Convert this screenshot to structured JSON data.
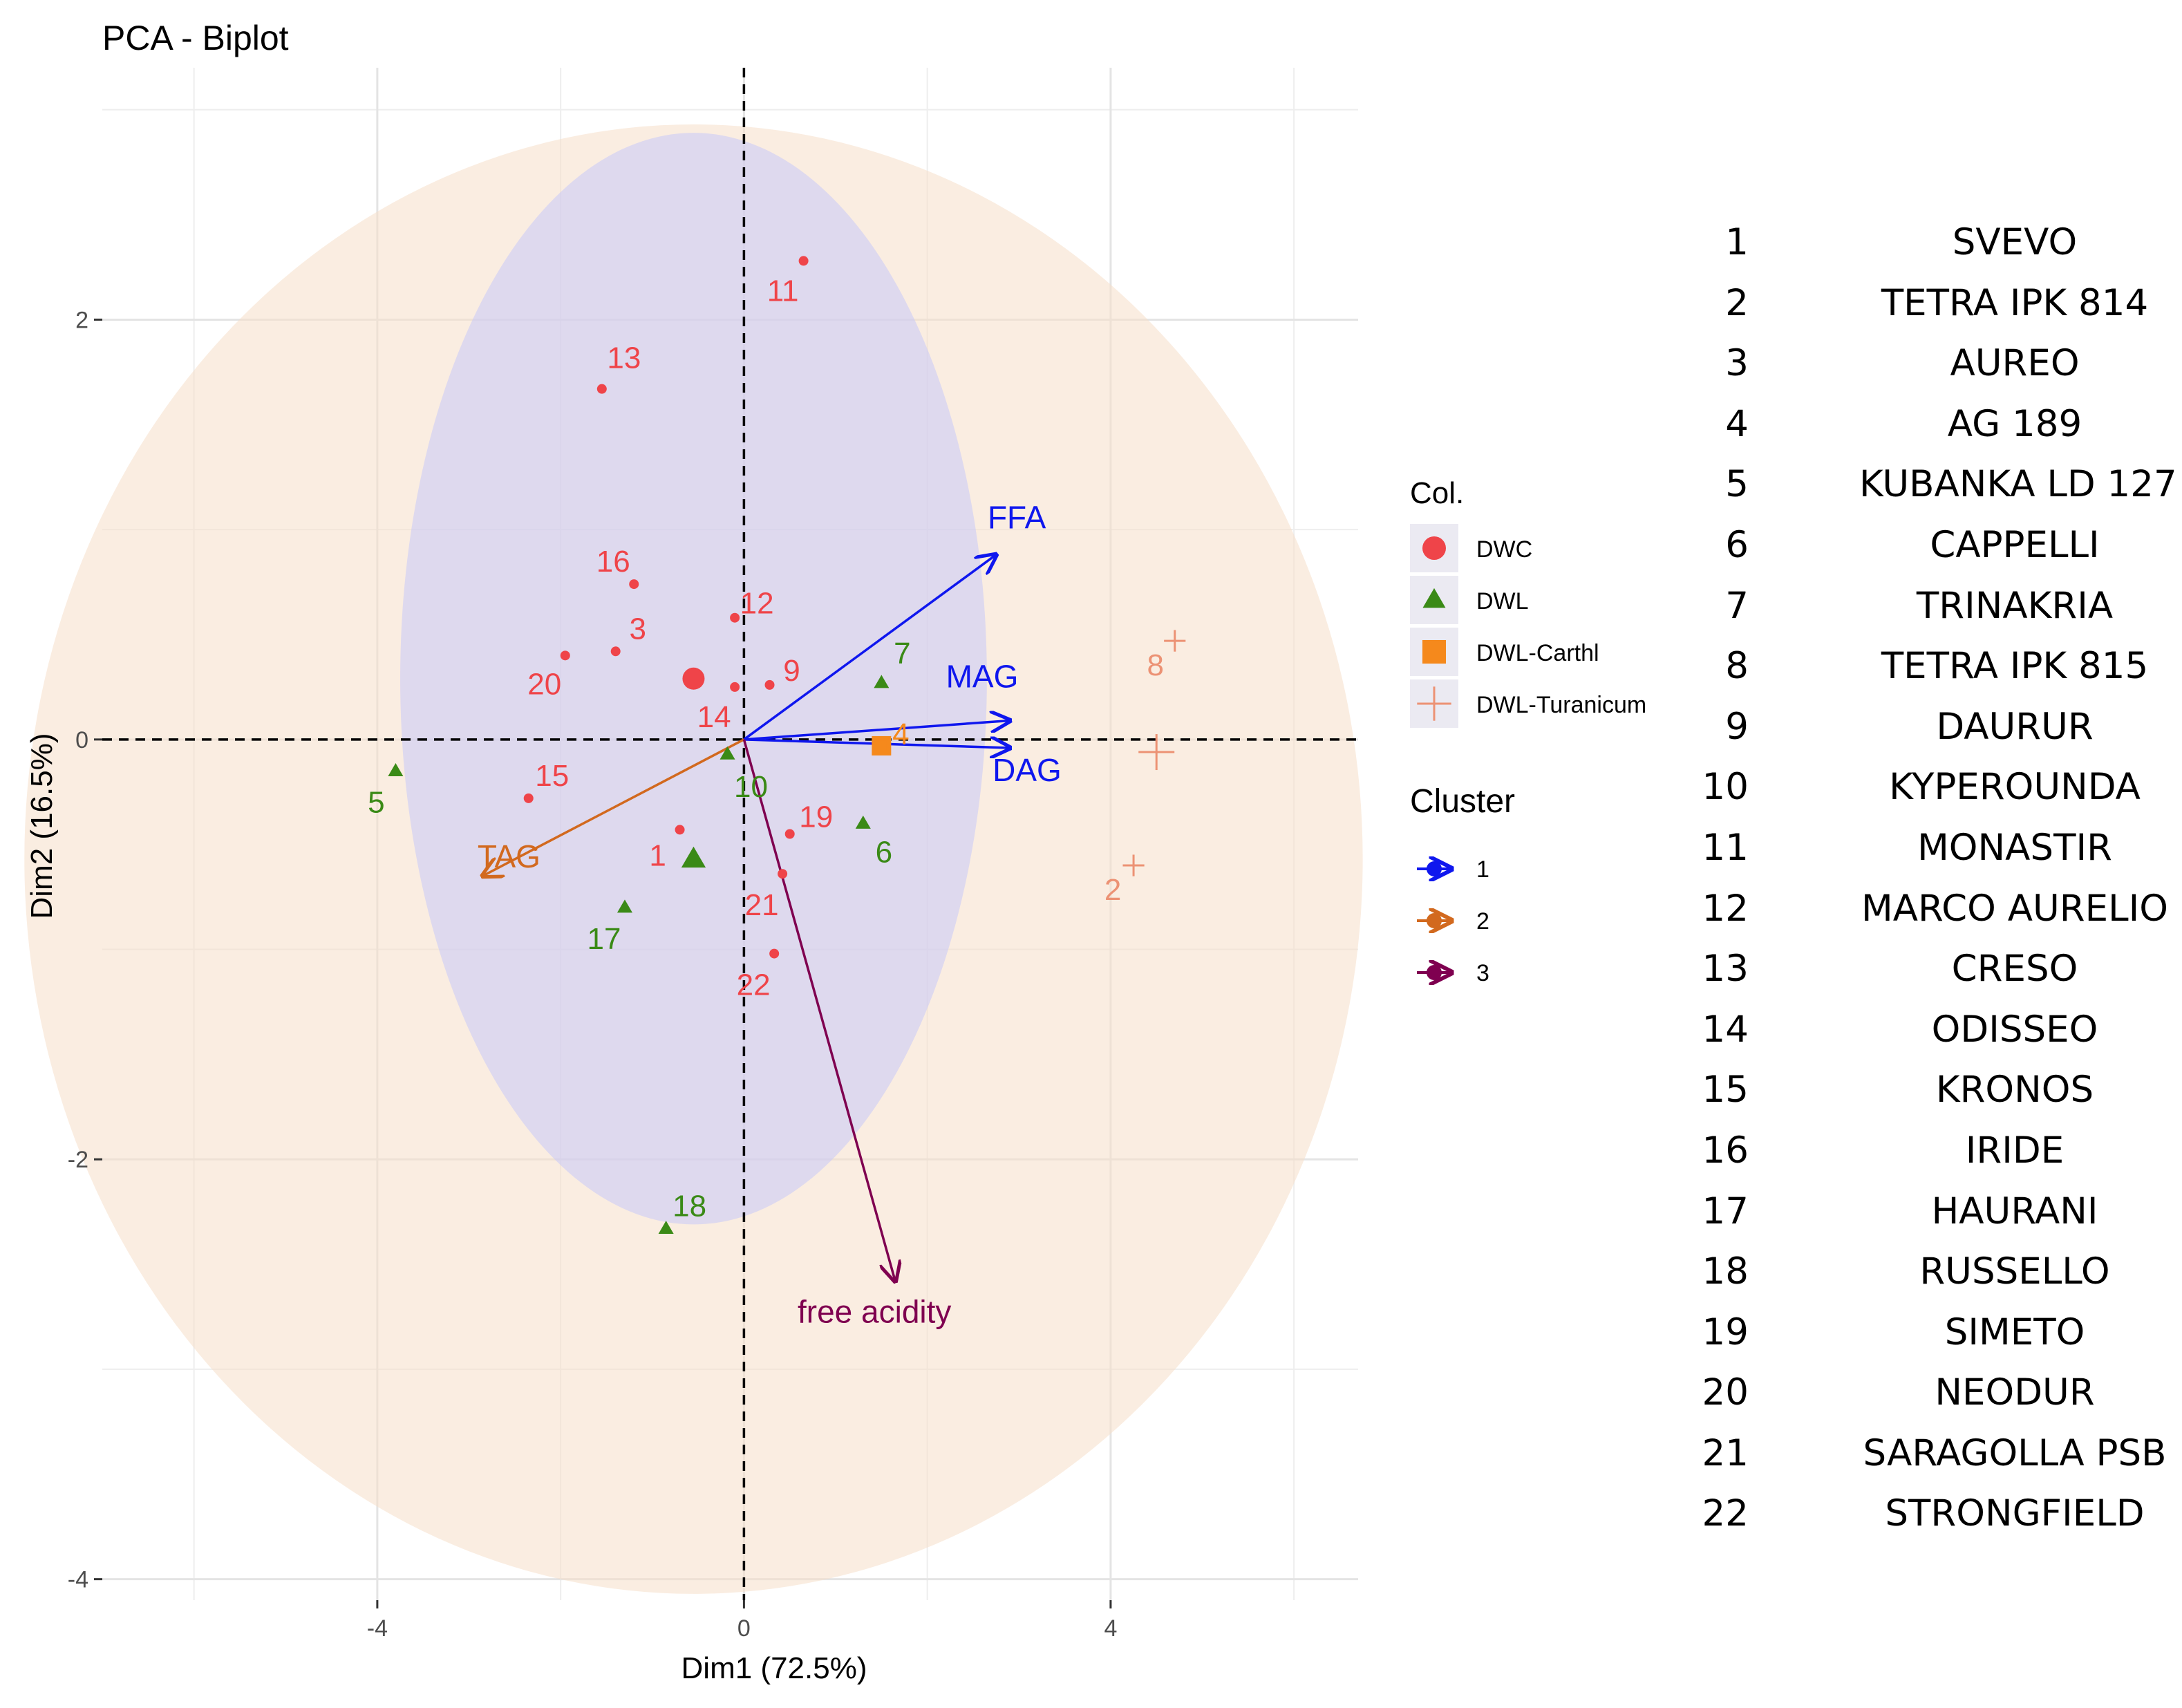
{
  "chart_data": {
    "type": "scatter",
    "title": "PCA - Biplot",
    "xlabel": "Dim1 (72.5%)",
    "ylabel": "Dim2 (16.5%)",
    "xlim": [
      -7.0,
      6.7
    ],
    "ylim": [
      -4.1,
      3.2
    ],
    "x_ticks": [
      -4,
      0,
      4
    ],
    "y_ticks": [
      -4,
      -2,
      0,
      2
    ],
    "x_tick_labels": [
      "-4",
      "0",
      "4"
    ],
    "y_tick_labels": [
      "-4",
      "-2",
      "0",
      "2"
    ],
    "grid": true,
    "groups": [
      {
        "name": "DWC",
        "color": "#ef4449",
        "shape": "circle"
      },
      {
        "name": "DWL",
        "color": "#3a8a16",
        "shape": "triangle"
      },
      {
        "name": "DWL-Carthl",
        "color": "#f5891c",
        "shape": "square"
      },
      {
        "name": "DWL-Turanicum",
        "color": "#ec9274",
        "shape": "plus"
      }
    ],
    "points": [
      {
        "label": "1",
        "group": "DWC",
        "x": -0.7,
        "y": -0.43
      },
      {
        "label": "2",
        "group": "DWL-Turanicum",
        "x": 4.25,
        "y": -0.6
      },
      {
        "label": "3",
        "group": "DWC",
        "x": -1.4,
        "y": 0.42
      },
      {
        "label": "4",
        "group": "DWL-Carthl",
        "x": 1.5,
        "y": -0.03
      },
      {
        "label": "5",
        "group": "DWL",
        "x": -3.8,
        "y": -0.15
      },
      {
        "label": "6",
        "group": "DWL",
        "x": 1.3,
        "y": -0.4
      },
      {
        "label": "7",
        "group": "DWL",
        "x": 1.5,
        "y": 0.27
      },
      {
        "label": "8",
        "group": "DWL-Turanicum",
        "x": 4.7,
        "y": 0.47
      },
      {
        "label": "9",
        "group": "DWC",
        "x": 0.28,
        "y": 0.26
      },
      {
        "label": "10",
        "group": "DWL",
        "x": -0.18,
        "y": -0.07
      },
      {
        "label": "11",
        "group": "DWC",
        "x": 0.65,
        "y": 2.28
      },
      {
        "label": "12",
        "group": "DWC",
        "x": -0.1,
        "y": 0.58
      },
      {
        "label": "13",
        "group": "DWC",
        "x": -1.55,
        "y": 1.67
      },
      {
        "label": "14",
        "group": "DWC",
        "x": -0.1,
        "y": 0.25
      },
      {
        "label": "15",
        "group": "DWC",
        "x": -2.35,
        "y": -0.28
      },
      {
        "label": "16",
        "group": "DWC",
        "x": -1.2,
        "y": 0.74
      },
      {
        "label": "17",
        "group": "DWL",
        "x": -1.3,
        "y": -0.8
      },
      {
        "label": "18",
        "group": "DWL",
        "x": -0.85,
        "y": -2.33
      },
      {
        "label": "19",
        "group": "DWC",
        "x": 0.5,
        "y": -0.45
      },
      {
        "label": "20",
        "group": "DWC",
        "x": -1.95,
        "y": 0.4
      },
      {
        "label": "21",
        "group": "DWC",
        "x": 0.42,
        "y": -0.64
      },
      {
        "label": "22",
        "group": "DWC",
        "x": 0.33,
        "y": -1.02
      }
    ],
    "group_means": [
      {
        "group": "DWC",
        "x": -0.55,
        "y": 0.29
      },
      {
        "group": "DWL",
        "x": -0.55,
        "y": -0.57
      },
      {
        "group": "DWL-Carthl",
        "x": 1.5,
        "y": -0.03
      },
      {
        "group": "DWL-Turanicum",
        "x": 4.5,
        "y": -0.06
      }
    ],
    "variables": [
      {
        "name": "FFA",
        "cluster": "1",
        "x": 2.75,
        "y": 0.88
      },
      {
        "name": "MAG",
        "cluster": "1",
        "x": 2.9,
        "y": 0.09
      },
      {
        "name": "DAG",
        "cluster": "1",
        "x": 2.9,
        "y": -0.04
      },
      {
        "name": "TAG",
        "cluster": "2",
        "x": -2.85,
        "y": -0.65
      },
      {
        "name": "free acidity",
        "cluster": "3",
        "x": 1.65,
        "y": -2.58
      }
    ],
    "ellipses": [
      {
        "name": "DWC",
        "cx": -0.55,
        "cy": 0.29,
        "rx": 3.2,
        "ry": 2.6,
        "rotation_deg": 0,
        "fill": "#c7c8fa",
        "opacity": 0.55
      },
      {
        "name": "DWL",
        "cx": -0.55,
        "cy": -0.57,
        "rx": 7.3,
        "ry": 3.5,
        "rotation_deg": 0,
        "fill": "#f6dec9",
        "opacity": 0.55
      }
    ],
    "legend_color_title": "Col.",
    "legend_cluster_title": "Cluster",
    "clusters": [
      {
        "name": "1",
        "color": "#0f17ee"
      },
      {
        "name": "2",
        "color": "#d2691e"
      },
      {
        "name": "3",
        "color": "#7f0050"
      }
    ],
    "legend_position": "right"
  },
  "cultivars": [
    {
      "num": "1",
      "name": "SVEVO"
    },
    {
      "num": "2",
      "name": "TETRA IPK 814"
    },
    {
      "num": "3",
      "name": "AUREO"
    },
    {
      "num": "4",
      "name": "AG 189"
    },
    {
      "num": "5",
      "name": "KUBANKA LD 127"
    },
    {
      "num": "6",
      "name": "CAPPELLI"
    },
    {
      "num": "7",
      "name": "TRINAKRIA"
    },
    {
      "num": "8",
      "name": "TETRA IPK 815"
    },
    {
      "num": "9",
      "name": "DAURUR"
    },
    {
      "num": "10",
      "name": "KYPEROUNDA"
    },
    {
      "num": "11",
      "name": "MONASTIR"
    },
    {
      "num": "12",
      "name": "MARCO AURELIO"
    },
    {
      "num": "13",
      "name": "CRESO"
    },
    {
      "num": "14",
      "name": "ODISSEO"
    },
    {
      "num": "15",
      "name": "KRONOS"
    },
    {
      "num": "16",
      "name": "IRIDE"
    },
    {
      "num": "17",
      "name": "HAURANI"
    },
    {
      "num": "18",
      "name": "RUSSELLO"
    },
    {
      "num": "19",
      "name": "SIMETO"
    },
    {
      "num": "20",
      "name": "NEODUR"
    },
    {
      "num": "21",
      "name": "SARAGOLLA PSB"
    },
    {
      "num": "22",
      "name": "STRONGFIELD"
    }
  ]
}
